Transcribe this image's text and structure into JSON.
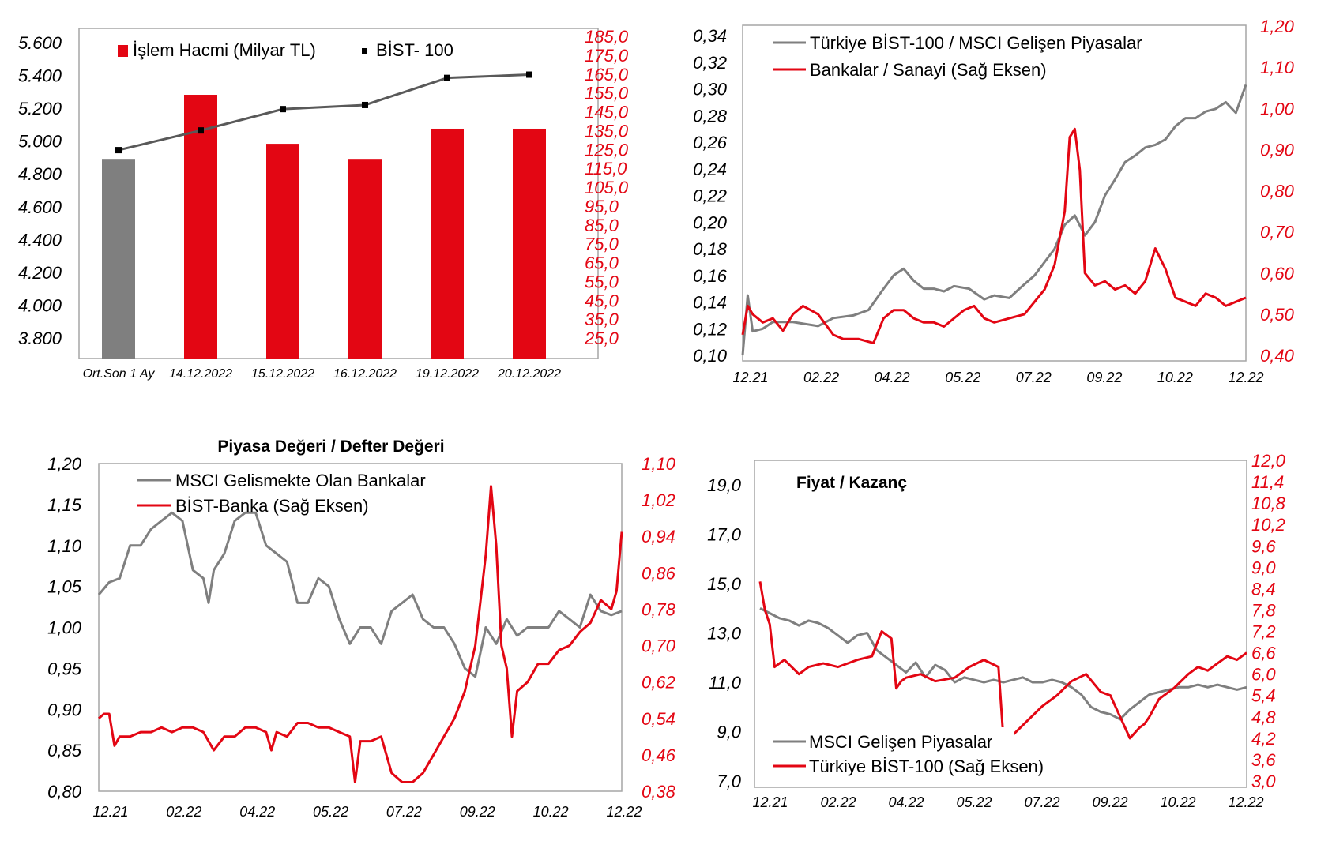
{
  "colors": {
    "red": "#e30613",
    "gray": "#7f7f7f",
    "dark": "#595959",
    "black": "#000000"
  },
  "chart_data": [
    {
      "type": "bar",
      "title": "",
      "categories": [
        "Ort.Son 1 Ay",
        "14.12.2022",
        "15.12.2022",
        "16.12.2022",
        "19.12.2022",
        "20.12.2022"
      ],
      "series": [
        {
          "name": "İşlem Hacmi (Milyar TL)",
          "axis": "right",
          "values": [
            120.0,
            154.0,
            128.0,
            120.0,
            136.0,
            136.0
          ]
        },
        {
          "name": "BİST- 100",
          "axis": "left",
          "type": "line",
          "values": [
            4945,
            5065,
            5195,
            5220,
            5385,
            5405
          ]
        }
      ],
      "left_axis": {
        "min": 3800,
        "max": 5600,
        "ticks": [
          "3.800",
          "4.000",
          "4.200",
          "4.400",
          "4.600",
          "4.800",
          "5.000",
          "5.200",
          "5.400",
          "5.600"
        ]
      },
      "right_axis": {
        "min": 25,
        "max": 185,
        "ticks": [
          "25,0",
          "35,0",
          "45,0",
          "55,0",
          "65,0",
          "75,0",
          "85,0",
          "95,0",
          "105,0",
          "115,0",
          "125,0",
          "135,0",
          "145,0",
          "155,0",
          "165,0",
          "175,0",
          "185,0"
        ]
      },
      "legend_placement": "top"
    },
    {
      "type": "line",
      "title": "",
      "x_ticks": [
        "12.21",
        "02.22",
        "04.22",
        "05.22",
        "07.22",
        "09.22",
        "10.22",
        "12.22"
      ],
      "left_axis": {
        "min": 0.1,
        "max": 0.34,
        "ticks": [
          "0,10",
          "0,12",
          "0,14",
          "0,16",
          "0,18",
          "0,20",
          "0,22",
          "0,24",
          "0,26",
          "0,28",
          "0,30",
          "0,32",
          "0,34"
        ]
      },
      "right_axis": {
        "min": 0.4,
        "max": 1.2,
        "ticks": [
          "0,40",
          "0,50",
          "0,60",
          "0,70",
          "0,80",
          "0,90",
          "1,00",
          "1,10",
          "1,20"
        ]
      },
      "series": [
        {
          "name": "Türkiye BİST-100 / MSCI Gelişen Piyasalar",
          "axis": "left",
          "x": [
            0,
            0.01,
            0.02,
            0.04,
            0.06,
            0.1,
            0.15,
            0.18,
            0.22,
            0.25,
            0.28,
            0.3,
            0.32,
            0.34,
            0.36,
            0.38,
            0.4,
            0.42,
            0.45,
            0.48,
            0.5,
            0.53,
            0.55,
            0.58,
            0.6,
            0.62,
            0.64,
            0.66,
            0.68,
            0.7,
            0.72,
            0.74,
            0.76,
            0.78,
            0.8,
            0.82,
            0.84,
            0.86,
            0.88,
            0.9,
            0.92,
            0.94,
            0.96,
            0.98,
            1.0
          ],
          "values": [
            0.1,
            0.145,
            0.118,
            0.12,
            0.125,
            0.125,
            0.122,
            0.128,
            0.13,
            0.134,
            0.15,
            0.16,
            0.165,
            0.156,
            0.15,
            0.15,
            0.148,
            0.152,
            0.15,
            0.142,
            0.145,
            0.143,
            0.15,
            0.16,
            0.17,
            0.18,
            0.198,
            0.205,
            0.19,
            0.2,
            0.22,
            0.232,
            0.245,
            0.25,
            0.256,
            0.258,
            0.262,
            0.272,
            0.278,
            0.278,
            0.283,
            0.285,
            0.29,
            0.282,
            0.303
          ]
        },
        {
          "name": "Bankalar / Sanayi (Sağ Eksen)",
          "axis": "right",
          "x": [
            0,
            0.01,
            0.02,
            0.04,
            0.06,
            0.08,
            0.1,
            0.12,
            0.15,
            0.18,
            0.2,
            0.23,
            0.26,
            0.28,
            0.3,
            0.32,
            0.34,
            0.36,
            0.38,
            0.4,
            0.42,
            0.44,
            0.46,
            0.48,
            0.5,
            0.53,
            0.56,
            0.6,
            0.62,
            0.64,
            0.65,
            0.66,
            0.67,
            0.68,
            0.7,
            0.72,
            0.74,
            0.76,
            0.78,
            0.8,
            0.82,
            0.84,
            0.86,
            0.88,
            0.9,
            0.92,
            0.94,
            0.96,
            0.98,
            1.0
          ],
          "values": [
            0.45,
            0.52,
            0.5,
            0.48,
            0.49,
            0.46,
            0.5,
            0.52,
            0.5,
            0.45,
            0.44,
            0.44,
            0.43,
            0.49,
            0.51,
            0.51,
            0.49,
            0.48,
            0.48,
            0.47,
            0.49,
            0.51,
            0.52,
            0.49,
            0.48,
            0.49,
            0.5,
            0.56,
            0.62,
            0.75,
            0.93,
            0.95,
            0.85,
            0.6,
            0.57,
            0.58,
            0.56,
            0.57,
            0.55,
            0.58,
            0.66,
            0.61,
            0.54,
            0.53,
            0.52,
            0.55,
            0.54,
            0.52,
            0.53,
            0.54
          ]
        }
      ],
      "legend_placement": "top-left"
    },
    {
      "type": "line",
      "title": "Piyasa Değeri / Defter Değeri",
      "x_ticks": [
        "12.21",
        "02.22",
        "04.22",
        "05.22",
        "07.22",
        "09.22",
        "10.22",
        "12.22"
      ],
      "left_axis": {
        "min": 0.8,
        "max": 1.2,
        "ticks": [
          "0,80",
          "0,85",
          "0,90",
          "0,95",
          "1,00",
          "1,05",
          "1,10",
          "1,15",
          "1,20"
        ]
      },
      "right_axis": {
        "min": 0.38,
        "max": 1.1,
        "ticks": [
          "0,38",
          "0,46",
          "0,54",
          "0,62",
          "0,70",
          "0,78",
          "0,86",
          "0,94",
          "1,02",
          "1,10"
        ]
      },
      "series": [
        {
          "name": "MSCI Gelismekte Olan Bankalar",
          "axis": "left",
          "x": [
            0,
            0.02,
            0.04,
            0.06,
            0.08,
            0.1,
            0.12,
            0.14,
            0.16,
            0.18,
            0.2,
            0.21,
            0.22,
            0.24,
            0.26,
            0.28,
            0.3,
            0.32,
            0.34,
            0.36,
            0.38,
            0.4,
            0.42,
            0.44,
            0.46,
            0.48,
            0.5,
            0.52,
            0.54,
            0.56,
            0.58,
            0.6,
            0.62,
            0.64,
            0.66,
            0.68,
            0.7,
            0.72,
            0.74,
            0.76,
            0.78,
            0.8,
            0.82,
            0.84,
            0.86,
            0.88,
            0.9,
            0.92,
            0.94,
            0.96,
            0.98,
            1.0
          ],
          "values": [
            1.04,
            1.055,
            1.06,
            1.1,
            1.1,
            1.12,
            1.13,
            1.14,
            1.13,
            1.07,
            1.06,
            1.03,
            1.07,
            1.09,
            1.13,
            1.14,
            1.14,
            1.1,
            1.09,
            1.08,
            1.03,
            1.03,
            1.06,
            1.05,
            1.01,
            0.98,
            1.0,
            1.0,
            0.98,
            1.02,
            1.03,
            1.04,
            1.01,
            1.0,
            1.0,
            0.98,
            0.95,
            0.94,
            1.0,
            0.98,
            1.01,
            0.99,
            1.0,
            1.0,
            1.0,
            1.02,
            1.01,
            1.0,
            1.04,
            1.02,
            1.015,
            1.02
          ]
        },
        {
          "name": "BİST-Banka (Sağ Eksen)",
          "axis": "right",
          "x": [
            0,
            0.01,
            0.02,
            0.03,
            0.04,
            0.06,
            0.08,
            0.1,
            0.12,
            0.14,
            0.16,
            0.18,
            0.2,
            0.22,
            0.24,
            0.26,
            0.28,
            0.3,
            0.32,
            0.33,
            0.34,
            0.36,
            0.38,
            0.4,
            0.42,
            0.44,
            0.46,
            0.48,
            0.49,
            0.5,
            0.52,
            0.54,
            0.56,
            0.58,
            0.6,
            0.62,
            0.64,
            0.66,
            0.68,
            0.7,
            0.72,
            0.73,
            0.74,
            0.75,
            0.76,
            0.77,
            0.78,
            0.79,
            0.8,
            0.82,
            0.84,
            0.86,
            0.88,
            0.9,
            0.92,
            0.94,
            0.96,
            0.98,
            0.99,
            1.0
          ],
          "values": [
            0.54,
            0.55,
            0.55,
            0.48,
            0.5,
            0.5,
            0.51,
            0.51,
            0.52,
            0.51,
            0.52,
            0.52,
            0.51,
            0.47,
            0.5,
            0.5,
            0.52,
            0.52,
            0.51,
            0.47,
            0.51,
            0.5,
            0.53,
            0.53,
            0.52,
            0.52,
            0.51,
            0.5,
            0.4,
            0.49,
            0.49,
            0.5,
            0.42,
            0.4,
            0.4,
            0.42,
            0.46,
            0.5,
            0.54,
            0.6,
            0.7,
            0.8,
            0.9,
            1.05,
            0.92,
            0.7,
            0.65,
            0.5,
            0.6,
            0.62,
            0.66,
            0.66,
            0.69,
            0.7,
            0.73,
            0.75,
            0.8,
            0.78,
            0.82,
            0.95
          ]
        }
      ],
      "legend_placement": "top-left"
    },
    {
      "type": "line",
      "title": "Fiyat / Kazanç",
      "x_ticks": [
        "12.21",
        "02.22",
        "04.22",
        "05.22",
        "07.22",
        "09.22",
        "10.22",
        "12.22"
      ],
      "left_axis": {
        "min": 7.0,
        "max": 20.0,
        "ticks": [
          "7,0",
          "9,0",
          "11,0",
          "13,0",
          "15,0",
          "17,0",
          "19,0"
        ]
      },
      "right_axis": {
        "min": 3.0,
        "max": 12.0,
        "ticks": [
          "3,0",
          "3,6",
          "4,2",
          "4,8",
          "5,4",
          "6,0",
          "6,6",
          "7,2",
          "7,8",
          "8,4",
          "9,0",
          "9,6",
          "10,2",
          "10,8",
          "11,4",
          "12,0"
        ]
      },
      "series": [
        {
          "name": "MSCI Gelişen Piyasalar",
          "axis": "left",
          "x": [
            0,
            0.02,
            0.04,
            0.06,
            0.08,
            0.1,
            0.12,
            0.14,
            0.16,
            0.18,
            0.2,
            0.22,
            0.24,
            0.26,
            0.28,
            0.3,
            0.32,
            0.34,
            0.36,
            0.38,
            0.4,
            0.42,
            0.44,
            0.46,
            0.48,
            0.5,
            0.52,
            0.54,
            0.56,
            0.58,
            0.6,
            0.62,
            0.64,
            0.66,
            0.68,
            0.7,
            0.72,
            0.74,
            0.76,
            0.78,
            0.8,
            0.82,
            0.84,
            0.86,
            0.88,
            0.9,
            0.92,
            0.94,
            0.96,
            0.98,
            1.0
          ],
          "values": [
            14.0,
            13.8,
            13.6,
            13.5,
            13.3,
            13.5,
            13.4,
            13.2,
            12.9,
            12.6,
            12.9,
            13.0,
            12.3,
            12.0,
            11.7,
            11.4,
            11.8,
            11.2,
            11.7,
            11.5,
            11.0,
            11.2,
            11.1,
            11.0,
            11.1,
            11.0,
            11.1,
            11.2,
            11.0,
            11.0,
            11.1,
            11.0,
            10.8,
            10.5,
            10.0,
            9.8,
            9.7,
            9.5,
            9.9,
            10.2,
            10.5,
            10.6,
            10.7,
            10.8,
            10.8,
            10.9,
            10.8,
            10.9,
            10.8,
            10.7,
            10.8
          ]
        },
        {
          "name": "Türkiye BİST-100 (Sağ Eksen)",
          "axis": "right",
          "x": [
            0,
            0.01,
            0.02,
            0.03,
            0.05,
            0.08,
            0.1,
            0.13,
            0.16,
            0.2,
            0.23,
            0.25,
            0.27,
            0.28,
            0.29,
            0.3,
            0.33,
            0.36,
            0.4,
            0.43,
            0.46,
            0.49,
            0.5,
            0.51,
            0.52,
            0.55,
            0.58,
            0.61,
            0.64,
            0.67,
            0.7,
            0.72,
            0.74,
            0.76,
            0.78,
            0.79,
            0.8,
            0.82,
            0.85,
            0.88,
            0.9,
            0.92,
            0.94,
            0.96,
            0.98,
            1.0
          ],
          "values": [
            8.6,
            7.8,
            7.4,
            6.2,
            6.4,
            6.0,
            6.2,
            6.3,
            6.2,
            6.4,
            6.5,
            7.2,
            7.0,
            5.6,
            5.8,
            5.9,
            6.0,
            5.8,
            5.9,
            6.2,
            6.4,
            6.2,
            4.2,
            4.2,
            4.3,
            4.7,
            5.1,
            5.4,
            5.8,
            6.0,
            5.5,
            5.4,
            4.8,
            4.2,
            4.5,
            4.6,
            4.8,
            5.3,
            5.6,
            6.0,
            6.2,
            6.1,
            6.3,
            6.5,
            6.4,
            6.6
          ]
        }
      ],
      "legend_placement": "bottom-left"
    }
  ]
}
